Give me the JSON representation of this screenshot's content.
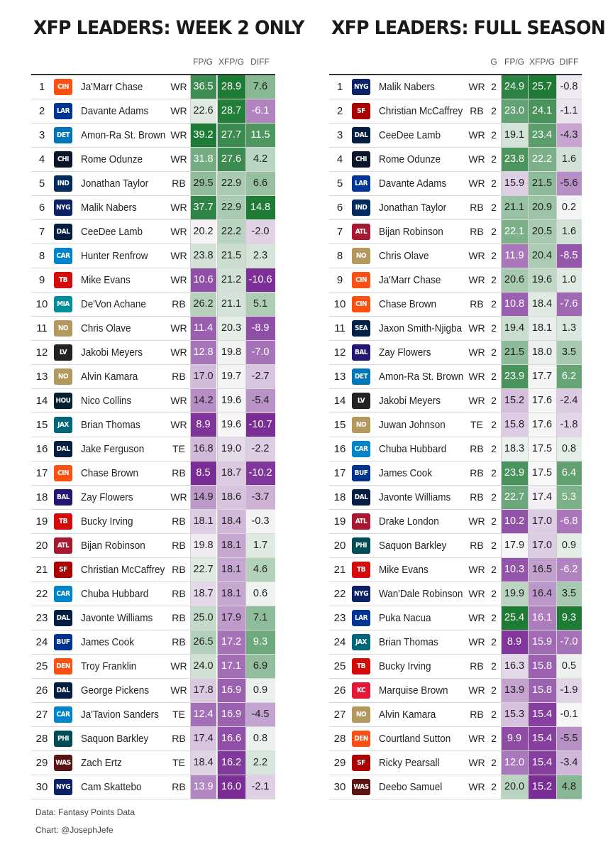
{
  "left": {
    "title": "XFP LEADERS: WEEK 2 ONLY",
    "headers": [
      "FP/G",
      "XFP/G",
      "DIFF"
    ],
    "rows": [
      {
        "rank": "1",
        "team": "CIN",
        "name": "Ja'Marr Chase",
        "pos": "WR",
        "fp": "36.5",
        "xfp": "28.9",
        "diff": "7.6"
      },
      {
        "rank": "2",
        "team": "LAR",
        "name": "Davante Adams",
        "pos": "WR",
        "fp": "22.6",
        "xfp": "28.7",
        "diff": "-6.1"
      },
      {
        "rank": "3",
        "team": "DET",
        "name": "Amon-Ra St. Brown",
        "pos": "WR",
        "fp": "39.2",
        "xfp": "27.7",
        "diff": "11.5"
      },
      {
        "rank": "4",
        "team": "CHI",
        "name": "Rome Odunze",
        "pos": "WR",
        "fp": "31.8",
        "xfp": "27.6",
        "diff": "4.2"
      },
      {
        "rank": "5",
        "team": "IND",
        "name": "Jonathan Taylor",
        "pos": "RB",
        "fp": "29.5",
        "xfp": "22.9",
        "diff": "6.6"
      },
      {
        "rank": "6",
        "team": "NYG",
        "name": "Malik Nabers",
        "pos": "WR",
        "fp": "37.7",
        "xfp": "22.9",
        "diff": "14.8"
      },
      {
        "rank": "7",
        "team": "DAL",
        "name": "CeeDee Lamb",
        "pos": "WR",
        "fp": "20.2",
        "xfp": "22.2",
        "diff": "-2.0"
      },
      {
        "rank": "8",
        "team": "CAR",
        "name": "Hunter Renfrow",
        "pos": "WR",
        "fp": "23.8",
        "xfp": "21.5",
        "diff": "2.3"
      },
      {
        "rank": "9",
        "team": "TB",
        "name": "Mike Evans",
        "pos": "WR",
        "fp": "10.6",
        "xfp": "21.2",
        "diff": "-10.6"
      },
      {
        "rank": "10",
        "team": "MIA",
        "name": "De'Von Achane",
        "pos": "RB",
        "fp": "26.2",
        "xfp": "21.1",
        "diff": "5.1"
      },
      {
        "rank": "11",
        "team": "NO",
        "name": "Chris Olave",
        "pos": "WR",
        "fp": "11.4",
        "xfp": "20.3",
        "diff": "-8.9"
      },
      {
        "rank": "12",
        "team": "LV",
        "name": "Jakobi Meyers",
        "pos": "WR",
        "fp": "12.8",
        "xfp": "19.8",
        "diff": "-7.0"
      },
      {
        "rank": "13",
        "team": "NO",
        "name": "Alvin Kamara",
        "pos": "RB",
        "fp": "17.0",
        "xfp": "19.7",
        "diff": "-2.7"
      },
      {
        "rank": "14",
        "team": "HOU",
        "name": "Nico Collins",
        "pos": "WR",
        "fp": "14.2",
        "xfp": "19.6",
        "diff": "-5.4"
      },
      {
        "rank": "15",
        "team": "JAX",
        "name": "Brian Thomas",
        "pos": "WR",
        "fp": "8.9",
        "xfp": "19.6",
        "diff": "-10.7"
      },
      {
        "rank": "16",
        "team": "DAL",
        "name": "Jake Ferguson",
        "pos": "TE",
        "fp": "16.8",
        "xfp": "19.0",
        "diff": "-2.2"
      },
      {
        "rank": "17",
        "team": "CIN",
        "name": "Chase Brown",
        "pos": "RB",
        "fp": "8.5",
        "xfp": "18.7",
        "diff": "-10.2"
      },
      {
        "rank": "18",
        "team": "BAL",
        "name": "Zay Flowers",
        "pos": "WR",
        "fp": "14.9",
        "xfp": "18.6",
        "diff": "-3.7"
      },
      {
        "rank": "19",
        "team": "TB",
        "name": "Bucky Irving",
        "pos": "RB",
        "fp": "18.1",
        "xfp": "18.4",
        "diff": "-0.3"
      },
      {
        "rank": "20",
        "team": "ATL",
        "name": "Bijan Robinson",
        "pos": "RB",
        "fp": "19.8",
        "xfp": "18.1",
        "diff": "1.7"
      },
      {
        "rank": "21",
        "team": "SF",
        "name": "Christian McCaffrey",
        "pos": "RB",
        "fp": "22.7",
        "xfp": "18.1",
        "diff": "4.6"
      },
      {
        "rank": "22",
        "team": "CAR",
        "name": "Chuba Hubbard",
        "pos": "RB",
        "fp": "18.7",
        "xfp": "18.1",
        "diff": "0.6"
      },
      {
        "rank": "23",
        "team": "DAL",
        "name": "Javonte Williams",
        "pos": "RB",
        "fp": "25.0",
        "xfp": "17.9",
        "diff": "7.1"
      },
      {
        "rank": "24",
        "team": "BUF",
        "name": "James Cook",
        "pos": "RB",
        "fp": "26.5",
        "xfp": "17.2",
        "diff": "9.3"
      },
      {
        "rank": "25",
        "team": "DEN",
        "name": "Troy Franklin",
        "pos": "WR",
        "fp": "24.0",
        "xfp": "17.1",
        "diff": "6.9"
      },
      {
        "rank": "26",
        "team": "DAL",
        "name": "George Pickens",
        "pos": "WR",
        "fp": "17.8",
        "xfp": "16.9",
        "diff": "0.9"
      },
      {
        "rank": "27",
        "team": "CAR",
        "name": "Ja'Tavion Sanders",
        "pos": "TE",
        "fp": "12.4",
        "xfp": "16.9",
        "diff": "-4.5"
      },
      {
        "rank": "28",
        "team": "PHI",
        "name": "Saquon Barkley",
        "pos": "RB",
        "fp": "17.4",
        "xfp": "16.6",
        "diff": "0.8"
      },
      {
        "rank": "29",
        "team": "WAS",
        "name": "Zach Ertz",
        "pos": "TE",
        "fp": "18.4",
        "xfp": "16.2",
        "diff": "2.2"
      },
      {
        "rank": "30",
        "team": "NYG",
        "name": "Cam Skattebo",
        "pos": "RB",
        "fp": "13.9",
        "xfp": "16.0",
        "diff": "-2.1"
      }
    ]
  },
  "right": {
    "title": "XFP LEADERS: FULL SEASON",
    "headers": [
      "G",
      "FP/G",
      "XFP/G",
      "DIFF"
    ],
    "rows": [
      {
        "rank": "1",
        "team": "NYG",
        "name": "Malik Nabers",
        "pos": "WR",
        "g": "2",
        "fp": "24.9",
        "xfp": "25.7",
        "diff": "-0.8"
      },
      {
        "rank": "2",
        "team": "SF",
        "name": "Christian McCaffrey",
        "pos": "RB",
        "g": "2",
        "fp": "23.0",
        "xfp": "24.1",
        "diff": "-1.1"
      },
      {
        "rank": "3",
        "team": "DAL",
        "name": "CeeDee Lamb",
        "pos": "WR",
        "g": "2",
        "fp": "19.1",
        "xfp": "23.4",
        "diff": "-4.3"
      },
      {
        "rank": "4",
        "team": "CHI",
        "name": "Rome Odunze",
        "pos": "WR",
        "g": "2",
        "fp": "23.8",
        "xfp": "22.2",
        "diff": "1.6"
      },
      {
        "rank": "5",
        "team": "LAR",
        "name": "Davante Adams",
        "pos": "WR",
        "g": "2",
        "fp": "15.9",
        "xfp": "21.5",
        "diff": "-5.6"
      },
      {
        "rank": "6",
        "team": "IND",
        "name": "Jonathan Taylor",
        "pos": "RB",
        "g": "2",
        "fp": "21.1",
        "xfp": "20.9",
        "diff": "0.2"
      },
      {
        "rank": "7",
        "team": "ATL",
        "name": "Bijan Robinson",
        "pos": "RB",
        "g": "2",
        "fp": "22.1",
        "xfp": "20.5",
        "diff": "1.6"
      },
      {
        "rank": "8",
        "team": "NO",
        "name": "Chris Olave",
        "pos": "WR",
        "g": "2",
        "fp": "11.9",
        "xfp": "20.4",
        "diff": "-8.5"
      },
      {
        "rank": "9",
        "team": "CIN",
        "name": "Ja'Marr Chase",
        "pos": "WR",
        "g": "2",
        "fp": "20.6",
        "xfp": "19.6",
        "diff": "1.0"
      },
      {
        "rank": "10",
        "team": "CIN",
        "name": "Chase Brown",
        "pos": "RB",
        "g": "2",
        "fp": "10.8",
        "xfp": "18.4",
        "diff": "-7.6"
      },
      {
        "rank": "11",
        "team": "SEA",
        "name": "Jaxon Smith-Njigba",
        "pos": "WR",
        "g": "2",
        "fp": "19.4",
        "xfp": "18.1",
        "diff": "1.3"
      },
      {
        "rank": "12",
        "team": "BAL",
        "name": "Zay Flowers",
        "pos": "WR",
        "g": "2",
        "fp": "21.5",
        "xfp": "18.0",
        "diff": "3.5"
      },
      {
        "rank": "13",
        "team": "DET",
        "name": "Amon-Ra St. Brown",
        "pos": "WR",
        "g": "2",
        "fp": "23.9",
        "xfp": "17.7",
        "diff": "6.2"
      },
      {
        "rank": "14",
        "team": "LV",
        "name": "Jakobi Meyers",
        "pos": "WR",
        "g": "2",
        "fp": "15.2",
        "xfp": "17.6",
        "diff": "-2.4"
      },
      {
        "rank": "15",
        "team": "NO",
        "name": "Juwan Johnson",
        "pos": "TE",
        "g": "2",
        "fp": "15.8",
        "xfp": "17.6",
        "diff": "-1.8"
      },
      {
        "rank": "16",
        "team": "CAR",
        "name": "Chuba Hubbard",
        "pos": "RB",
        "g": "2",
        "fp": "18.3",
        "xfp": "17.5",
        "diff": "0.8"
      },
      {
        "rank": "17",
        "team": "BUF",
        "name": "James Cook",
        "pos": "RB",
        "g": "2",
        "fp": "23.9",
        "xfp": "17.5",
        "diff": "6.4"
      },
      {
        "rank": "18",
        "team": "DAL",
        "name": "Javonte Williams",
        "pos": "RB",
        "g": "2",
        "fp": "22.7",
        "xfp": "17.4",
        "diff": "5.3"
      },
      {
        "rank": "19",
        "team": "ATL",
        "name": "Drake London",
        "pos": "WR",
        "g": "2",
        "fp": "10.2",
        "xfp": "17.0",
        "diff": "-6.8"
      },
      {
        "rank": "20",
        "team": "PHI",
        "name": "Saquon Barkley",
        "pos": "RB",
        "g": "2",
        "fp": "17.9",
        "xfp": "17.0",
        "diff": "0.9"
      },
      {
        "rank": "21",
        "team": "TB",
        "name": "Mike Evans",
        "pos": "WR",
        "g": "2",
        "fp": "10.3",
        "xfp": "16.5",
        "diff": "-6.2"
      },
      {
        "rank": "22",
        "team": "NYG",
        "name": "Wan'Dale Robinson",
        "pos": "WR",
        "g": "2",
        "fp": "19.9",
        "xfp": "16.4",
        "diff": "3.5"
      },
      {
        "rank": "23",
        "team": "LAR",
        "name": "Puka Nacua",
        "pos": "WR",
        "g": "2",
        "fp": "25.4",
        "xfp": "16.1",
        "diff": "9.3"
      },
      {
        "rank": "24",
        "team": "JAX",
        "name": "Brian Thomas",
        "pos": "WR",
        "g": "2",
        "fp": "8.9",
        "xfp": "15.9",
        "diff": "-7.0"
      },
      {
        "rank": "25",
        "team": "TB",
        "name": "Bucky Irving",
        "pos": "RB",
        "g": "2",
        "fp": "16.3",
        "xfp": "15.8",
        "diff": "0.5"
      },
      {
        "rank": "26",
        "team": "KC",
        "name": "Marquise Brown",
        "pos": "WR",
        "g": "2",
        "fp": "13.9",
        "xfp": "15.8",
        "diff": "-1.9"
      },
      {
        "rank": "27",
        "team": "NO",
        "name": "Alvin Kamara",
        "pos": "RB",
        "g": "2",
        "fp": "15.3",
        "xfp": "15.4",
        "diff": "-0.1"
      },
      {
        "rank": "28",
        "team": "DEN",
        "name": "Courtland Sutton",
        "pos": "WR",
        "g": "2",
        "fp": "9.9",
        "xfp": "15.4",
        "diff": "-5.5"
      },
      {
        "rank": "29",
        "team": "SF",
        "name": "Ricky Pearsall",
        "pos": "WR",
        "g": "2",
        "fp": "12.0",
        "xfp": "15.4",
        "diff": "-3.4"
      },
      {
        "rank": "30",
        "team": "WAS",
        "name": "Deebo Samuel",
        "pos": "WR",
        "g": "2",
        "fp": "20.0",
        "xfp": "15.2",
        "diff": "4.8"
      }
    ]
  },
  "footer": {
    "source": "Data: Fantasy Points Data",
    "credit": "Chart: @JosephJefe"
  },
  "team_colors": {
    "CIN": "#fb4f14",
    "LAR": "#003594",
    "DET": "#0076b6",
    "CHI": "#0b162a",
    "IND": "#002c5f",
    "NYG": "#0b2265",
    "DAL": "#041e42",
    "CAR": "#0085ca",
    "TB": "#d50a0a",
    "MIA": "#008e97",
    "NO": "#b3995d",
    "LV": "#222222",
    "HOU": "#03202f",
    "JAX": "#006778",
    "BAL": "#241773",
    "ATL": "#a71930",
    "SF": "#aa0000",
    "BUF": "#00338d",
    "DEN": "#fb4f14",
    "PHI": "#004c54",
    "WAS": "#5a1414",
    "SEA": "#002244",
    "KC": "#e31837"
  }
}
